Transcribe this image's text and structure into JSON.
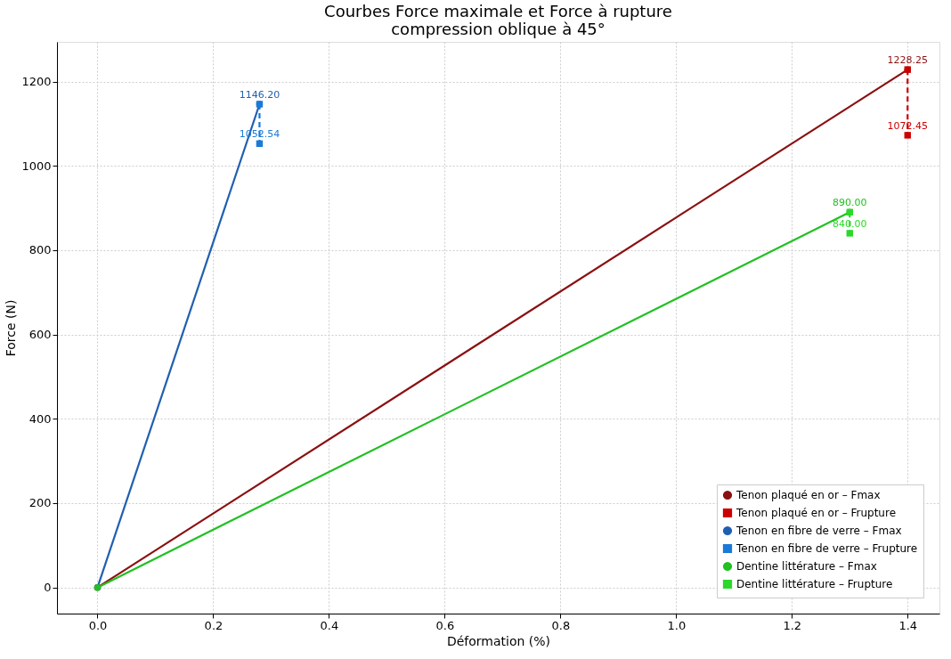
{
  "chart_data": {
    "type": "line",
    "title": [
      "Courbes Force maximale et Force à rupture",
      "compression oblique à 45°"
    ],
    "xlabel": "Déformation (%)",
    "ylabel": "Force (N)",
    "xlim": [
      -0.07,
      1.455
    ],
    "xticks": [
      {
        "value": 0,
        "label": "0.0"
      },
      0.2,
      0.4,
      0.6,
      0.8,
      {
        "value": 1,
        "label": "1.0"
      },
      1.2,
      1.4
    ],
    "ylim": [
      -62,
      1294
    ],
    "yticks": [
      0,
      200,
      400,
      600,
      800,
      1000,
      1200
    ],
    "grid": true,
    "legend": "bottom right",
    "series": [
      {
        "name": "Tenon plaqué en or – Fmax",
        "color": "#8b1010",
        "x": [
          0,
          1.4
        ],
        "values": [
          0,
          1228.25
        ],
        "value_labels": [
          null,
          "1228.25"
        ],
        "marker": "circle",
        "line_style": "solid"
      },
      {
        "name": "Tenon plaqué en or – Frupture",
        "color": "#cc0000",
        "x": [
          1.4,
          1.4
        ],
        "values": [
          1228.25,
          1072.45
        ],
        "value_labels": [
          null,
          "1072.45"
        ],
        "marker": "square",
        "line_style": "dashed"
      },
      {
        "name": "Tenon en fibre de verre – Fmax",
        "color": "#1f5fb0",
        "x": [
          0,
          0.28
        ],
        "values": [
          0,
          1146.2
        ],
        "value_labels": [
          null,
          "1146.20"
        ],
        "marker": "circle",
        "line_style": "solid"
      },
      {
        "name": "Tenon en fibre de verre – Frupture",
        "color": "#1a7ad8",
        "x": [
          0.28,
          0.28
        ],
        "values": [
          1146.2,
          1052.54
        ],
        "value_labels": [
          null,
          "1052.54"
        ],
        "marker": "square",
        "line_style": "dashed"
      },
      {
        "name": "Dentine littérature – Fmax",
        "color": "#22c022",
        "x": [
          0,
          1.3
        ],
        "values": [
          0,
          890.0
        ],
        "value_labels": [
          null,
          "890.00"
        ],
        "marker": "circle",
        "line_style": "solid"
      },
      {
        "name": "Dentine littérature – Frupture",
        "color": "#2bd82b",
        "x": [
          1.3,
          1.3
        ],
        "values": [
          890.0,
          840.0
        ],
        "value_labels": [
          null,
          "840.00"
        ],
        "marker": "square",
        "line_style": "dashed"
      }
    ]
  }
}
